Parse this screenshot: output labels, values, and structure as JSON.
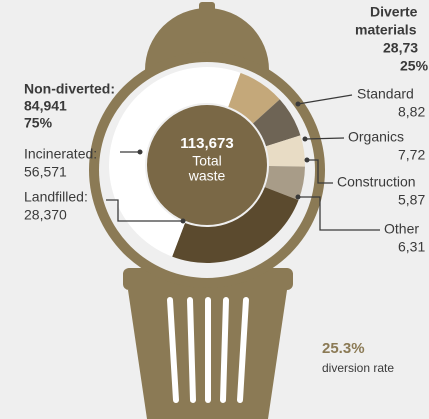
{
  "chart_data": {
    "type": "donut",
    "total": {
      "value": 113673,
      "label": "113,673"
    },
    "total_caption": [
      "Total",
      "waste"
    ],
    "non_diverted": {
      "title": "Non-diverted:",
      "value": 84941,
      "label": "84,941",
      "percent": 75,
      "percent_label": "75%"
    },
    "diverted": {
      "title": [
        "Diverte",
        "materials"
      ],
      "value": 28732,
      "label": "28,73",
      "percent": 25,
      "percent_label": "25%"
    },
    "segments": [
      {
        "name": "Standard",
        "value": 8820,
        "label": "8,82",
        "color": "#c4a87a"
      },
      {
        "name": "Organics",
        "value": 7720,
        "label": "7,72",
        "color": "#6e6455"
      },
      {
        "name": "Construction",
        "value": 5870,
        "label": "5,87",
        "color": "#e8dcc5"
      },
      {
        "name": "Other",
        "value": 6310,
        "label": "6,31",
        "color": "#a89c88"
      },
      {
        "name": "Landfilled:",
        "value": 28370,
        "label": "28,370",
        "color": "#5b4a2e"
      },
      {
        "name": "Incinerated:",
        "value": 56571,
        "label": "56,571",
        "color": "#ffffff"
      }
    ],
    "diversion_rate": {
      "value": 25.3,
      "label": "25.3%",
      "caption": "diversion rate"
    }
  }
}
